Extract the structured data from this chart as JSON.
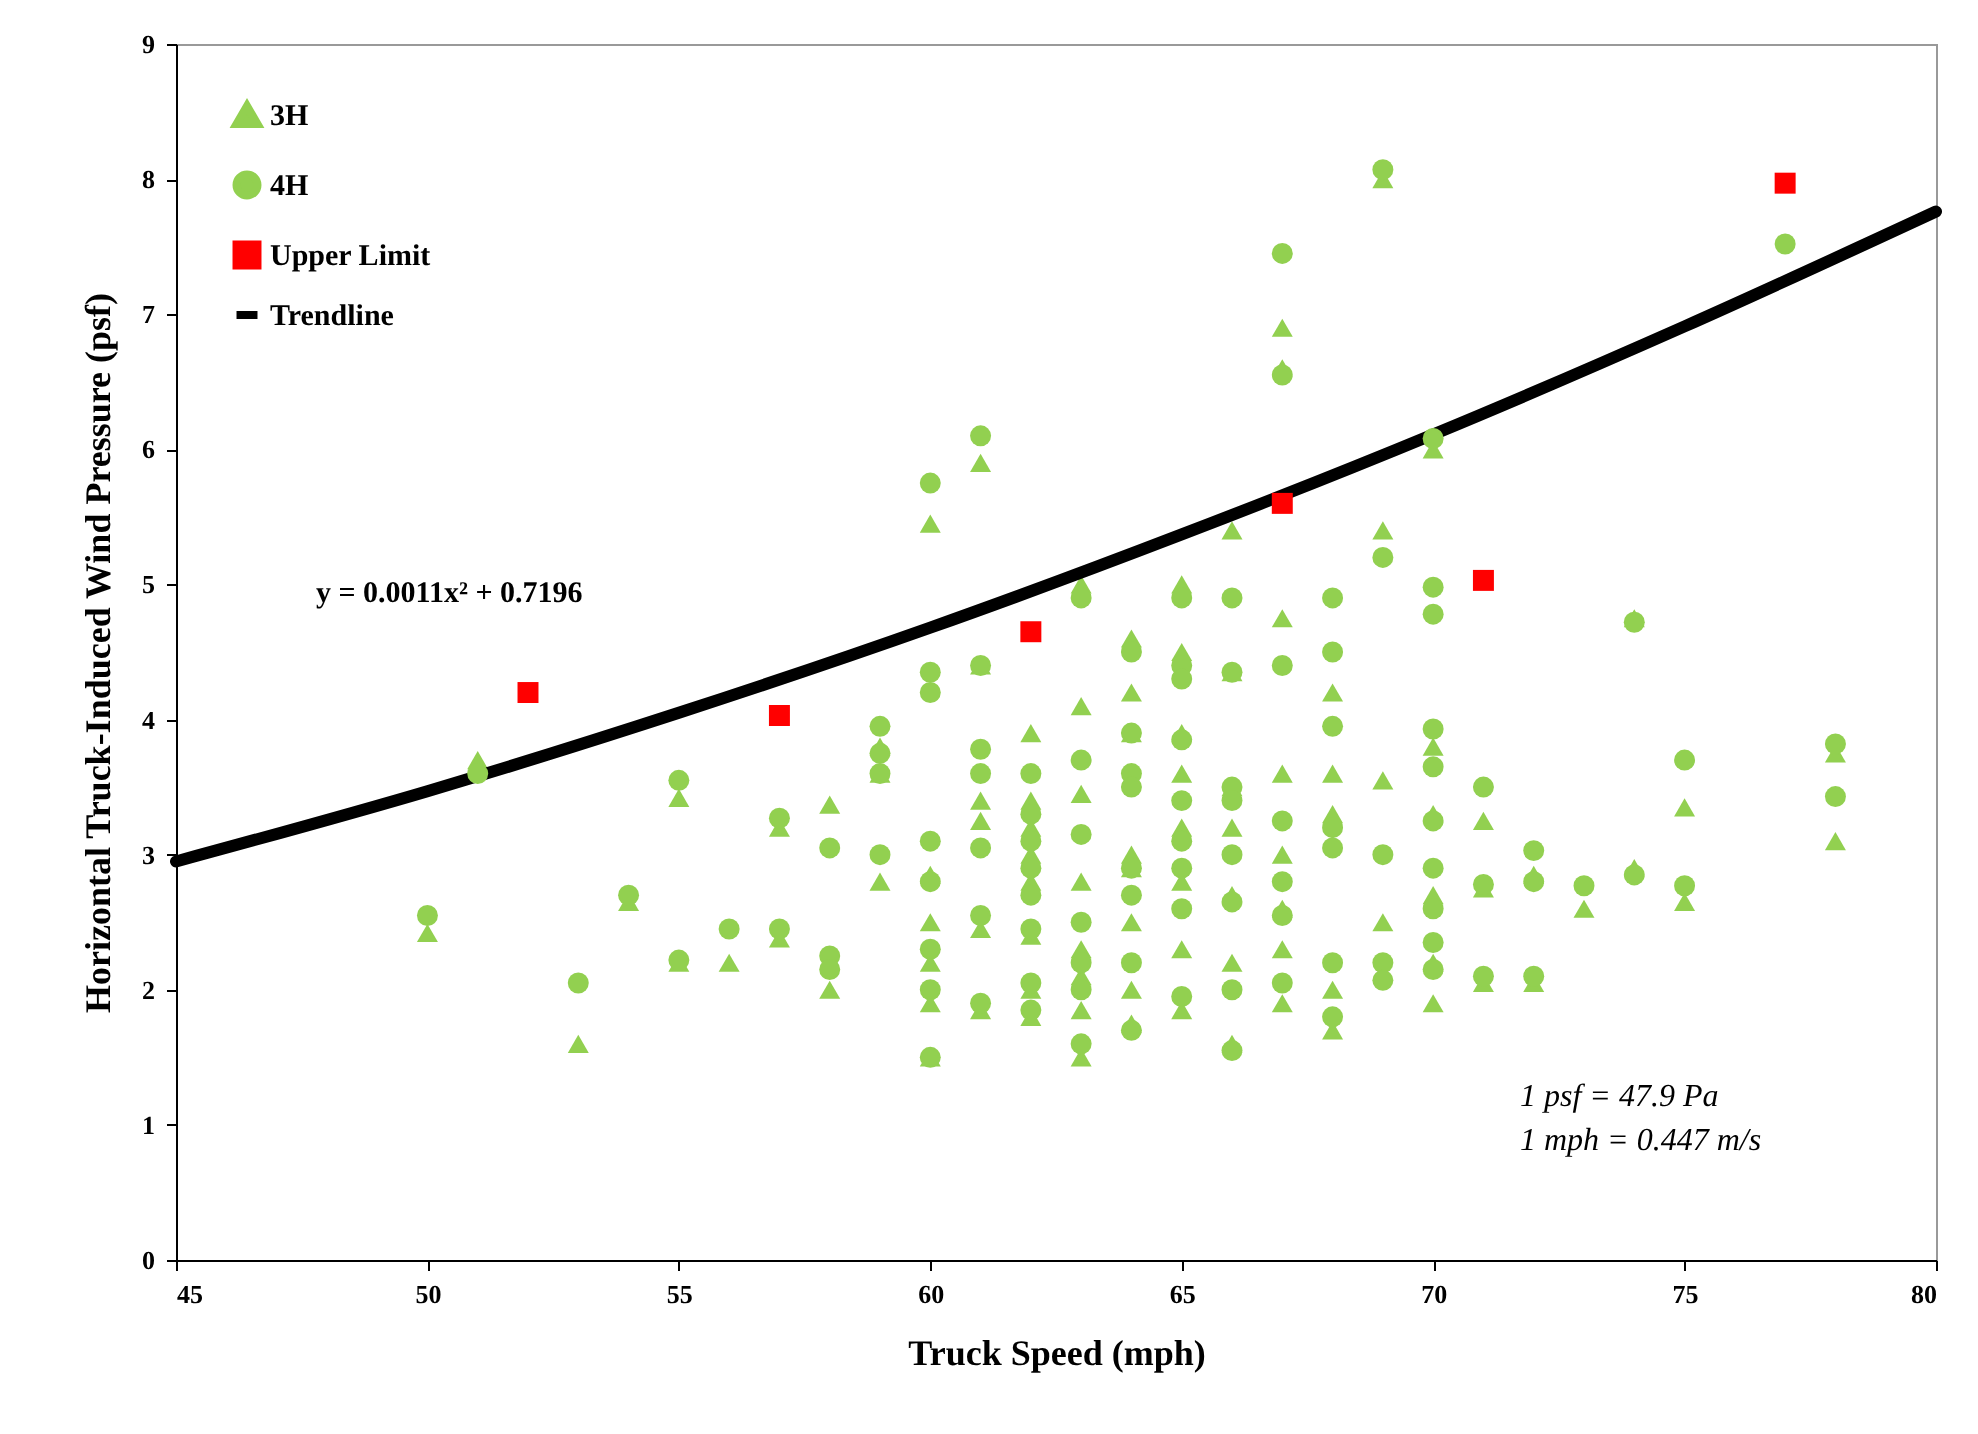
{
  "chart_data": {
    "type": "scatter",
    "xlabel": "Truck Speed (mph)",
    "ylabel": "Horizontal Truck-Induced Wind Pressure (psf)",
    "xlim": [
      45,
      80
    ],
    "xticks": [
      45,
      50,
      55,
      60,
      65,
      70,
      75,
      80
    ],
    "ylim": [
      0,
      9
    ],
    "yticks": [
      0,
      1,
      2,
      3,
      4,
      5,
      6,
      7,
      8,
      9
    ],
    "grid": false,
    "legend": "top left",
    "annotations": [
      "y = 0.0011x² + 0.7196",
      "1 psf = 47.9 Pa",
      "1 mph = 0.447 m/s"
    ],
    "series": [
      {
        "name": "3H",
        "marker": "triangle",
        "color": "#92d050",
        "x": [
          50,
          51,
          53,
          54,
          55,
          55,
          56,
          57,
          57,
          58,
          58,
          59,
          59,
          59,
          60,
          60,
          60,
          60,
          60,
          60,
          61,
          61,
          61,
          61,
          61,
          61,
          62,
          62,
          62,
          62,
          62,
          62,
          62,
          62,
          63,
          63,
          63,
          63,
          63,
          63,
          63,
          63,
          64,
          64,
          64,
          64,
          64,
          64,
          64,
          64,
          65,
          65,
          65,
          65,
          65,
          65,
          65,
          65,
          66,
          66,
          66,
          66,
          66,
          66,
          66,
          67,
          67,
          67,
          67,
          67,
          67,
          67,
          67,
          68,
          68,
          68,
          68,
          68,
          69,
          69,
          69,
          69,
          70,
          70,
          70,
          70,
          70,
          70,
          71,
          71,
          71,
          72,
          72,
          73,
          74,
          74,
          75,
          75,
          77,
          78,
          78
        ],
        "values": [
          2.42,
          3.7,
          1.6,
          2.65,
          3.42,
          2.2,
          2.2,
          3.2,
          2.38,
          3.37,
          2.0,
          3.8,
          2.8,
          3.6,
          5.45,
          2.85,
          2.5,
          2.2,
          1.9,
          1.5,
          5.9,
          4.4,
          3.4,
          3.25,
          2.45,
          1.85,
          3.9,
          3.4,
          3.2,
          3.0,
          2.8,
          2.4,
          2.0,
          1.8,
          5.0,
          4.1,
          3.45,
          2.8,
          2.3,
          2.1,
          1.85,
          1.5,
          4.6,
          4.2,
          3.9,
          3.0,
          2.9,
          2.5,
          2.0,
          1.75,
          5.0,
          4.5,
          3.9,
          3.6,
          3.2,
          2.8,
          2.3,
          1.85,
          5.4,
          4.35,
          3.5,
          3.2,
          2.7,
          2.2,
          1.6,
          6.9,
          6.6,
          4.75,
          3.6,
          3.0,
          2.6,
          2.3,
          1.9,
          4.2,
          3.6,
          3.3,
          2.0,
          1.7,
          8.0,
          5.4,
          3.55,
          2.5,
          6.0,
          3.8,
          3.3,
          2.7,
          2.2,
          1.9,
          3.25,
          2.75,
          2.05,
          2.85,
          2.05,
          2.6,
          4.75,
          2.9,
          3.35,
          2.65,
          null,
          3.75,
          3.1
        ]
      },
      {
        "name": "4H",
        "marker": "circle",
        "color": "#92d050",
        "x": [
          50,
          51,
          53,
          54,
          55,
          55,
          56,
          57,
          57,
          58,
          58,
          58,
          59,
          59,
          59,
          59,
          60,
          60,
          60,
          60,
          60,
          60,
          60,
          60,
          61,
          61,
          61,
          61,
          61,
          61,
          61,
          62,
          62,
          62,
          62,
          62,
          62,
          62,
          62,
          63,
          63,
          63,
          63,
          63,
          63,
          63,
          64,
          64,
          64,
          64,
          64,
          64,
          64,
          64,
          65,
          65,
          65,
          65,
          65,
          65,
          65,
          65,
          65,
          66,
          66,
          66,
          66,
          66,
          66,
          66,
          66,
          67,
          67,
          67,
          67,
          67,
          67,
          67,
          68,
          68,
          68,
          68,
          68,
          68,
          68,
          69,
          69,
          69,
          69,
          69,
          70,
          70,
          70,
          70,
          70,
          70,
          70,
          70,
          70,
          70,
          71,
          71,
          71,
          72,
          72,
          72,
          73,
          74,
          74,
          75,
          75,
          77,
          78,
          78
        ],
        "values": [
          2.55,
          3.6,
          2.05,
          2.7,
          3.55,
          2.22,
          2.45,
          3.27,
          2.45,
          3.05,
          2.25,
          2.15,
          3.95,
          3.75,
          3.6,
          3.0,
          5.75,
          4.35,
          4.2,
          3.1,
          2.8,
          2.3,
          2.0,
          1.5,
          6.1,
          4.4,
          3.78,
          3.6,
          3.05,
          2.55,
          1.9,
          3.6,
          3.3,
          3.1,
          2.9,
          2.7,
          2.45,
          2.05,
          1.85,
          4.9,
          3.7,
          3.15,
          2.5,
          2.2,
          2.0,
          1.6,
          4.5,
          3.9,
          3.6,
          3.5,
          2.9,
          2.7,
          2.2,
          1.7,
          4.9,
          4.4,
          4.3,
          3.85,
          3.4,
          3.1,
          2.9,
          2.6,
          1.95,
          4.9,
          4.35,
          3.5,
          3.4,
          3.0,
          2.65,
          2.0,
          1.55,
          7.45,
          6.55,
          4.4,
          3.25,
          2.8,
          2.55,
          2.05,
          4.9,
          4.5,
          3.95,
          3.2,
          3.05,
          2.2,
          1.8,
          8.07,
          5.2,
          3.0,
          2.2,
          2.07,
          6.08,
          4.98,
          4.78,
          3.93,
          3.65,
          3.25,
          2.9,
          2.6,
          2.35,
          2.15,
          3.5,
          2.78,
          2.1,
          3.03,
          2.8,
          2.1,
          2.77,
          4.72,
          2.85,
          3.7,
          2.77,
          7.52,
          3.82,
          3.43
        ]
      },
      {
        "name": "Upper Limit",
        "marker": "square",
        "color": "#ff0000",
        "x": [
          52,
          57,
          62,
          67,
          71,
          77
        ],
        "values": [
          4.2,
          4.03,
          4.65,
          5.6,
          5.03,
          7.97
        ]
      },
      {
        "name": "Trendline",
        "type": "line",
        "line_style": "solid",
        "color": "#000000",
        "x": [
          45,
          50,
          55,
          60,
          65,
          70,
          75,
          80
        ],
        "values": [
          2.95,
          3.47,
          4.05,
          4.68,
          5.37,
          6.11,
          6.91,
          7.76
        ]
      }
    ]
  }
}
